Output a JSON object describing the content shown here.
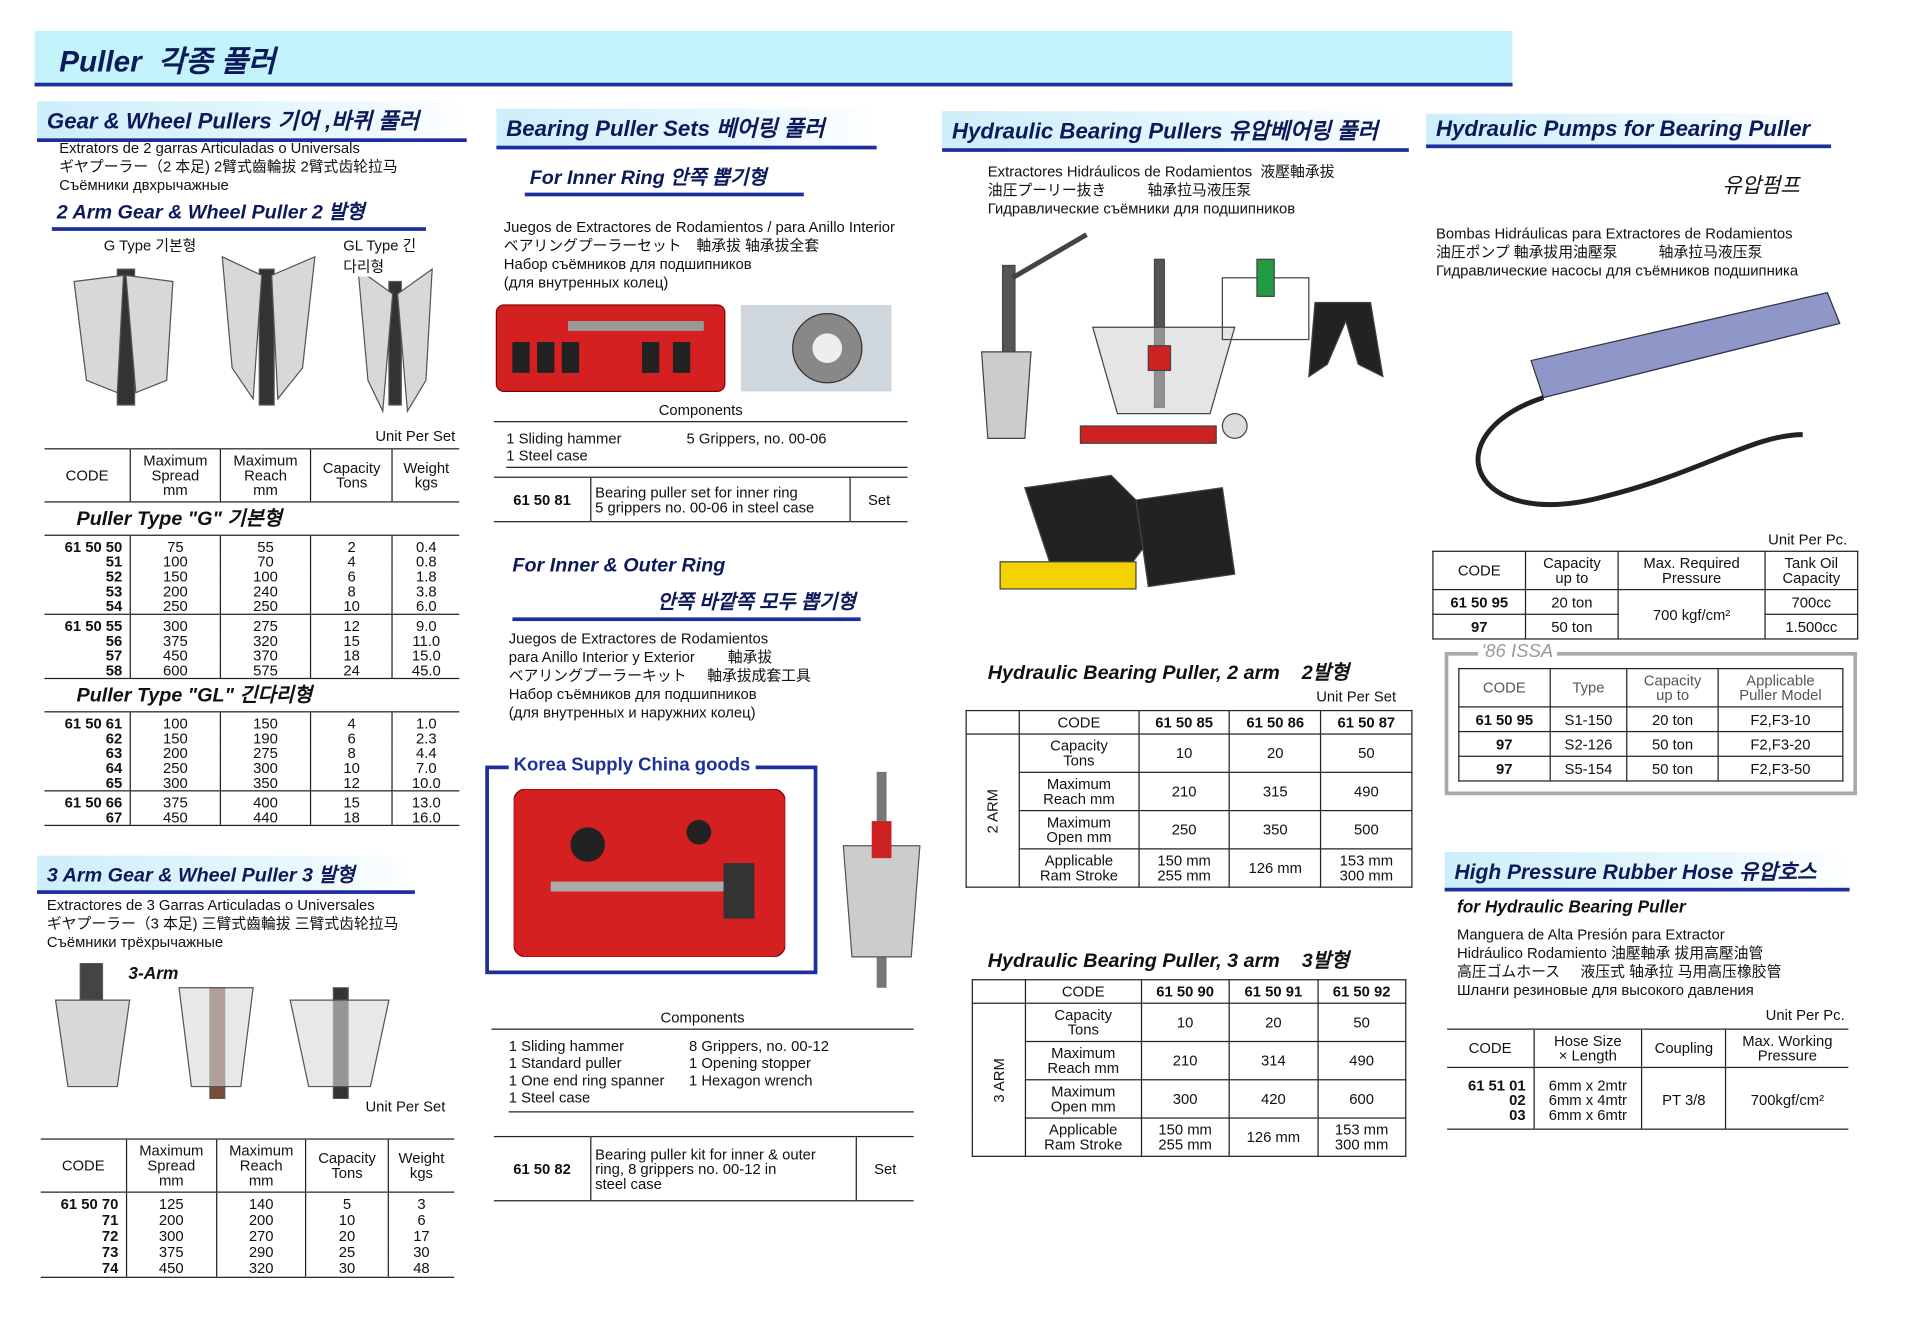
{
  "header": {
    "title": "Puller  각종 풀러"
  },
  "gear_wheel": {
    "title": "Gear & Wheel Pullers  기어 ,바퀴 풀러",
    "description": [
      "Extrators de 2 garras Articuladas o Universals",
      "ギヤプーラー（2 本足) 2臂式齒輪拔 2臂式齿轮拉马",
      "Съёмники двхрычажные"
    ],
    "subtitle": "2 Arm Gear & Wheel Puller  2 발형",
    "image_labels": [
      "G Type 기본형",
      "GL Type 긴다리형"
    ],
    "unit": "Unit Per Set",
    "table": {
      "headers": [
        "CODE",
        "Maximum\nSpread\nmm",
        "Maximum\nReach\nmm",
        "Capacity\nTons",
        "Weight\nkgs"
      ],
      "groups": [
        {
          "label": "Puller Type \"G\"    기본형",
          "blocks": [
            [
              [
                "61 50 50",
                "75",
                "55",
                "2",
                "0.4"
              ],
              [
                "51",
                "100",
                "70",
                "4",
                "0.8"
              ],
              [
                "52",
                "150",
                "100",
                "6",
                "1.8"
              ],
              [
                "53",
                "200",
                "240",
                "8",
                "3.8"
              ],
              [
                "54",
                "250",
                "250",
                "10",
                "6.0"
              ]
            ],
            [
              [
                "61 50 55",
                "300",
                "275",
                "12",
                "9.0"
              ],
              [
                "56",
                "375",
                "320",
                "15",
                "11.0"
              ],
              [
                "57",
                "450",
                "370",
                "18",
                "15.0"
              ],
              [
                "58",
                "600",
                "575",
                "24",
                "45.0"
              ]
            ]
          ]
        },
        {
          "label": "Puller Type \"GL\"    긴다리형",
          "blocks": [
            [
              [
                "61 50 61",
                "100",
                "150",
                "4",
                "1.0"
              ],
              [
                "62",
                "150",
                "190",
                "6",
                "2.3"
              ],
              [
                "63",
                "200",
                "275",
                "8",
                "4.4"
              ],
              [
                "64",
                "250",
                "300",
                "10",
                "7.0"
              ],
              [
                "65",
                "300",
                "350",
                "12",
                "10.0"
              ]
            ],
            [
              [
                "61 50 66",
                "375",
                "400",
                "15",
                "13.0"
              ],
              [
                "67",
                "450",
                "440",
                "18",
                "16.0"
              ]
            ]
          ]
        }
      ]
    }
  },
  "three_arm": {
    "title": "3 Arm Gear & Wheel Puller  3 발형",
    "description": [
      "Extractores de 3 Garras Articuladas o Universales",
      "ギヤプーラー（3 本足) 三臂式齒輪拔 三臂式齿轮拉马",
      "Съёмники трёхрычажные"
    ],
    "image_label": "3-Arm",
    "unit": "Unit Per Set",
    "table": {
      "headers": [
        "CODE",
        "Maximum\nSpread\nmm",
        "Maximum\nReach\nmm",
        "Capacity\nTons",
        "Weight\nkgs"
      ],
      "groups": [
        {
          "blocks": [
            [
              [
                "61 50 70",
                "125",
                "140",
                "5",
                "3"
              ],
              [
                "71",
                "200",
                "200",
                "10",
                "6"
              ],
              [
                "72",
                "300",
                "270",
                "20",
                "17"
              ],
              [
                "73",
                "375",
                "290",
                "25",
                "30"
              ],
              [
                "74",
                "450",
                "320",
                "30",
                "48"
              ]
            ]
          ]
        }
      ]
    }
  },
  "bearing_sets": {
    "title": "Bearing Puller Sets  베어링 풀러",
    "inner": {
      "title": "For Inner Ring  안쪽 뽑기형",
      "description": [
        "Juegos de Extractores de Rodamientos / para Anillo Interior",
        "ベアリングプーラーセット　軸承拔 轴承拔全套",
        "Набор съёмников для подшипников",
        "(для внутренных колец)"
      ],
      "components_title": "Components",
      "components": [
        [
          "1 Sliding hammer",
          "1 Steel case"
        ],
        [
          "5 Grippers, no. 00-06"
        ]
      ],
      "order": {
        "code": "61 50 81",
        "description": "Bearing puller set for inner ring\n5 grippers no. 00-06 in steel case",
        "unit": "Set"
      }
    },
    "outer": {
      "title": "For Inner & Outer Ring",
      "title_ko": "안쪽 바깥쪽 모두 뽑기형",
      "description": [
        "Juegos de Extractores de Rodamientos",
        "para Anillo Interior y Exterior        軸承拔",
        "ベアリングプーラーキット     軸承拔成套工具",
        "Набор съёмников для подшипников",
        "(для внутренных и наружних колец)"
      ],
      "badge": "Korea Supply China goods",
      "components_title": "Components",
      "components": [
        [
          "1 Sliding hammer",
          "1 Standard puller",
          "1 One end ring spanner",
          "1 Steel case"
        ],
        [
          "8 Grippers, no. 00-12",
          "1 Opening stopper",
          "1 Hexagon wrench"
        ]
      ],
      "order": {
        "code": "61 50 82",
        "description": "Bearing puller kit for inner & outer\nring, 8 grippers no. 00-12 in\nsteel case",
        "unit": "Set"
      }
    }
  },
  "hydraulic_pullers": {
    "title": "Hydraulic Bearing Pullers  유압베어링 풀러",
    "description": [
      "Extractores Hidráulicos de Rodamientos  液壓軸承拔",
      "油圧プーリー抜き          轴承拉马液压泵",
      "Гидравлические съёмники для подшипников"
    ],
    "two_arm": {
      "title": "Hydraulic Bearing Puller, 2 arm    2발형",
      "unit": "Unit Per Set",
      "side": "2 ARM",
      "columns": [
        "CODE",
        "61 50 85",
        "61 50 86",
        "61 50 87"
      ],
      "rows": [
        [
          "Capacity\nTons",
          "10",
          "20",
          "50"
        ],
        [
          "Maximum\nReach mm",
          "210",
          "315",
          "490"
        ],
        [
          "Maximum\nOpen mm",
          "250",
          "350",
          "500"
        ],
        [
          "Applicable\nRam Stroke",
          "150 mm\n255 mm",
          "126 mm",
          "153 mm\n300 mm"
        ]
      ]
    },
    "three_arm": {
      "title": "Hydraulic Bearing Puller, 3 arm    3발형",
      "side": "3 ARM",
      "columns": [
        "CODE",
        "61 50 90",
        "61 50 91",
        "61 50 92"
      ],
      "rows": [
        [
          "Capacity\nTons",
          "10",
          "20",
          "50"
        ],
        [
          "Maximum\nReach mm",
          "210",
          "314",
          "490"
        ],
        [
          "Maximum\nOpen mm",
          "300",
          "420",
          "600"
        ],
        [
          "Applicable\nRam Stroke",
          "150 mm\n255 mm",
          "126 mm",
          "153 mm\n300 mm"
        ]
      ]
    }
  },
  "pumps": {
    "title": "Hydraulic Pumps for Bearing Puller",
    "title_ko": "유압펌프",
    "description": [
      "Bombas Hidráulicas para Extractores de Rodamientos",
      "油圧ポンプ 軸承拔用油壓泵          轴承拉马液压泵",
      "Гидравлические насосы для съёмников подшипника"
    ],
    "unit": "Unit Per Pc.",
    "table": {
      "headers": [
        "CODE",
        "Capacity\nup to",
        "Max. Required\nPressure",
        "Tank Oil\nCapacity"
      ],
      "pressure": "700 kgf/cm²",
      "rows": [
        [
          "61 50 95",
          "20 ton",
          "700cc"
        ],
        [
          "97",
          "50 ton",
          "1.500cc"
        ]
      ]
    },
    "issa": {
      "label": "'86 ISSA",
      "headers": [
        "CODE",
        "Type",
        "Capacity\nup to",
        "Applicable\nPuller Model"
      ],
      "rows": [
        [
          "61 50 95",
          "S1-150",
          "20 ton",
          "F2,F3-10"
        ],
        [
          "97",
          "S2-126",
          "50 ton",
          "F2,F3-20"
        ],
        [
          "97",
          "S5-154",
          "50 ton",
          "F2,F3-50"
        ]
      ]
    }
  },
  "hose": {
    "title": "High Pressure Rubber Hose  유압호스",
    "subtitle": "for Hydraulic Bearing Puller",
    "description": [
      "Manguera de Alta Presión para Extractor",
      "Hidráulico Rodamiento 油壓軸承 拔用高壓油管",
      "高圧ゴムホース     液压式 轴承拉 马用高压橡胶管",
      "Шланги резиновые для высокого давления"
    ],
    "unit": "Unit Per Pc.",
    "table": {
      "headers": [
        "CODE",
        "Hose Size\n× Length",
        "Coupling",
        "Max. Working\nPressure"
      ],
      "codes": [
        "61 51 01",
        "02",
        "03"
      ],
      "sizes": [
        "6mm x 2mtr",
        "6mm x 4mtr",
        "6mm x 6mtr"
      ],
      "coupling": "PT 3/8",
      "pressure": "700kgf/cm²"
    }
  }
}
